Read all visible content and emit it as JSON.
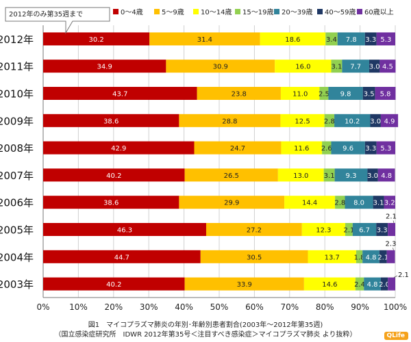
{
  "chart_data": {
    "type": "bar",
    "stacked": true,
    "orientation": "horizontal",
    "percent": true,
    "categories": [
      "2012年",
      "2011年",
      "2010年",
      "2009年",
      "2008年",
      "2007年",
      "2006年",
      "2005年",
      "2004年",
      "2003年"
    ],
    "series": [
      {
        "name": "0〜4歳",
        "color": "#c00000",
        "values": [
          30.2,
          34.9,
          43.7,
          38.6,
          42.9,
          40.2,
          38.6,
          46.3,
          44.7,
          40.2
        ]
      },
      {
        "name": "5〜9歳",
        "color": "#ffc000",
        "values": [
          31.4,
          30.9,
          23.8,
          28.8,
          24.7,
          26.5,
          29.9,
          27.2,
          30.5,
          33.9
        ]
      },
      {
        "name": "10〜14歳",
        "color": "#ffff00",
        "values": [
          18.6,
          16.0,
          11.0,
          12.5,
          11.6,
          13.0,
          14.4,
          12.3,
          13.7,
          14.6
        ]
      },
      {
        "name": "15〜19歳",
        "color": "#92d050",
        "values": [
          3.4,
          3.1,
          2.5,
          2.8,
          2.6,
          3.1,
          2.8,
          2.1,
          1.8,
          2.4
        ]
      },
      {
        "name": "20〜39歳",
        "color": "#31849b",
        "values": [
          7.8,
          7.7,
          9.8,
          10.2,
          9.6,
          9.3,
          8.0,
          6.7,
          4.8,
          4.8
        ]
      },
      {
        "name": "40〜59歳",
        "color": "#1f3864",
        "values": [
          3.3,
          3.0,
          3.5,
          3.0,
          3.3,
          3.0,
          3.1,
          3.3,
          2.1,
          2.0
        ]
      },
      {
        "name": "60歳以上",
        "color": "#7030a0",
        "values": [
          5.3,
          4.5,
          5.8,
          4.9,
          5.3,
          4.8,
          3.2,
          2.1,
          2.3,
          2.1
        ]
      }
    ],
    "xlim": [
      0,
      100
    ],
    "xticks": [
      "0%",
      "10%",
      "20%",
      "30%",
      "40%",
      "50%",
      "60%",
      "70%",
      "80%",
      "90%",
      "100%"
    ],
    "legend_position": "top",
    "annotation": "2012年のみ第35週まで"
  },
  "caption": {
    "line1": "図1　マイコプラズマ肺炎の年別･年齢別患者割合(2003年〜2012年第35週)",
    "line2": "（国立感染症研究所　IDWR 2012年第35号＜注目すべき感染症＞マイコプラズマ肺炎 より抜粋）"
  },
  "logo": {
    "text": "QLife"
  }
}
